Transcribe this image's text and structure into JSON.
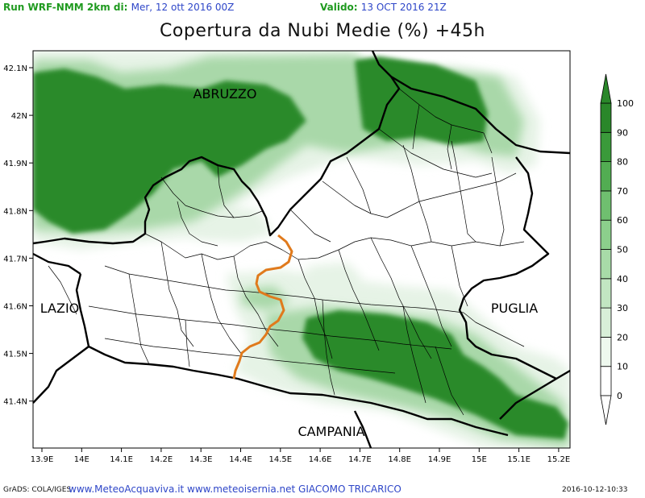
{
  "header": {
    "run_label": "Run WRF-NMM 2km di:",
    "run_value": "Mer, 12 ott 2016 00Z",
    "valid_label": "Valido:",
    "valid_value": "13 OCT 2016 21Z"
  },
  "title": "Copertura da Nubi Medie (%) +45h",
  "map": {
    "lon_ticks": [
      "13.9E",
      "14E",
      "14.1E",
      "14.2E",
      "14.3E",
      "14.4E",
      "14.5E",
      "14.6E",
      "14.7E",
      "14.8E",
      "14.9E",
      "15E",
      "15.1E",
      "15.2E"
    ],
    "lat_ticks": [
      "42.1N",
      "42N",
      "41.9N",
      "41.8N",
      "41.7N",
      "41.6N",
      "41.5N",
      "41.4N"
    ],
    "regions": {
      "abruzzo": "ABRUZZO",
      "lazio": "LAZIO",
      "puglia": "PUGLIA",
      "campania": "CAMPANIA"
    },
    "colors": {
      "cloud_light": "#e6f3e6",
      "cloud_mid": "#a9d8a9",
      "cloud_dark": "#2a8a2a",
      "province_border": "#e07a1c"
    }
  },
  "colorbar": {
    "labels": [
      "0",
      "10",
      "20",
      "30",
      "40",
      "50",
      "60",
      "70",
      "80",
      "90",
      "100"
    ],
    "colors": [
      "#ffffff",
      "#eef8ee",
      "#d8efd8",
      "#c2e6c2",
      "#a8dba8",
      "#8ccf8c",
      "#6fbf6f",
      "#52ad52",
      "#3a9a3a",
      "#2a872a"
    ]
  },
  "footer": {
    "credit": "GrADS: COLA/IGES",
    "links": "www.MeteoAcquaviva.it www.meteoisernia.net GIACOMO TRICARICO",
    "timestamp": "2016-10-12-10:33"
  }
}
